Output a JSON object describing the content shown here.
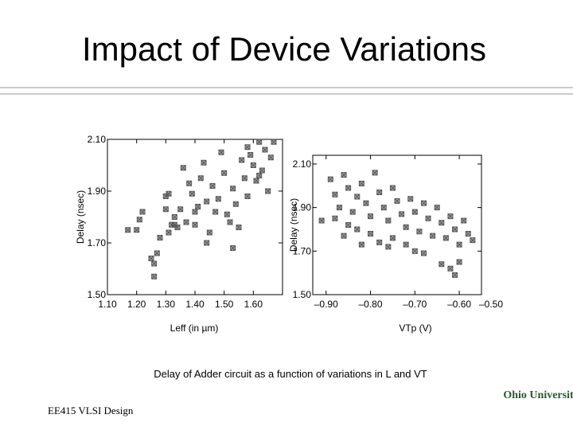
{
  "title": "Impact of Device Variations",
  "caption": "Delay of Adder circuit as a function of variations in  L and VT",
  "footer": "EE415 VLSI Design",
  "logo": "Ohio University",
  "chart_data": [
    {
      "type": "scatter",
      "xlabel": "Leff (in µm)",
      "ylabel": "Delay (nsec)",
      "color": "#555555",
      "xlim": [
        1.1,
        1.7
      ],
      "ylim": [
        1.5,
        2.1
      ],
      "xticks": [
        {
          "value": 1.1,
          "label": "1.10"
        },
        {
          "value": 1.2,
          "label": "1.20"
        },
        {
          "value": 1.3,
          "label": "1.30"
        },
        {
          "value": 1.4,
          "label": "1.40"
        },
        {
          "value": 1.5,
          "label": "1.50"
        },
        {
          "value": 1.6,
          "label": "1.60"
        }
      ],
      "yticks": [
        {
          "value": 1.5,
          "label": "1.50"
        },
        {
          "value": 1.7,
          "label": "1.70"
        },
        {
          "value": 1.9,
          "label": "1.90"
        },
        {
          "value": 2.1,
          "label": "2.10"
        }
      ],
      "x": [
        1.17,
        1.21,
        1.22,
        1.2,
        1.25,
        1.26,
        1.26,
        1.27,
        1.28,
        1.3,
        1.31,
        1.3,
        1.32,
        1.33,
        1.31,
        1.34,
        1.33,
        1.35,
        1.36,
        1.38,
        1.39,
        1.4,
        1.41,
        1.42,
        1.4,
        1.43,
        1.44,
        1.45,
        1.46,
        1.47,
        1.48,
        1.49,
        1.5,
        1.51,
        1.52,
        1.53,
        1.54,
        1.55,
        1.56,
        1.57,
        1.58,
        1.59,
        1.6,
        1.61,
        1.62,
        1.63,
        1.64,
        1.65,
        1.66,
        1.67,
        1.53,
        1.44,
        1.37,
        1.58,
        1.62
      ],
      "values": [
        1.75,
        1.79,
        1.82,
        1.75,
        1.64,
        1.62,
        1.57,
        1.66,
        1.72,
        1.88,
        1.89,
        1.83,
        1.77,
        1.77,
        1.74,
        1.76,
        1.8,
        1.83,
        1.99,
        1.93,
        1.89,
        1.82,
        1.84,
        1.95,
        1.77,
        2.01,
        1.86,
        1.74,
        1.92,
        1.82,
        1.87,
        2.05,
        1.97,
        1.81,
        1.78,
        1.91,
        1.85,
        1.76,
        2.02,
        1.95,
        1.88,
        2.04,
        2.0,
        1.94,
        2.09,
        1.98,
        2.06,
        1.9,
        2.03,
        2.09,
        1.68,
        1.7,
        1.78,
        2.07,
        1.96
      ]
    },
    {
      "type": "scatter",
      "xlabel": "VTp (V)",
      "ylabel": "Delay (nsec)",
      "color": "#555555",
      "xlim": [
        -0.93,
        -0.55
      ],
      "ylim": [
        1.5,
        2.14
      ],
      "xticks": [
        {
          "value": -0.9,
          "label": "–0.90"
        },
        {
          "value": -0.8,
          "label": "–0.80"
        },
        {
          "value": -0.7,
          "label": "–0.70"
        },
        {
          "value": -0.6,
          "label": "–0.60"
        },
        {
          "value": -0.5,
          "label": "–0.50"
        }
      ],
      "yticks": [
        {
          "value": 1.5,
          "label": "1.50"
        },
        {
          "value": 1.7,
          "label": "1.70"
        },
        {
          "value": 1.9,
          "label": "1.90"
        },
        {
          "value": 2.1,
          "label": "2.10"
        }
      ],
      "x": [
        -0.89,
        -0.86,
        -0.88,
        -0.85,
        -0.87,
        -0.84,
        -0.83,
        -0.82,
        -0.81,
        -0.8,
        -0.85,
        -0.83,
        -0.79,
        -0.78,
        -0.77,
        -0.76,
        -0.8,
        -0.78,
        -0.75,
        -0.74,
        -0.73,
        -0.72,
        -0.71,
        -0.7,
        -0.69,
        -0.68,
        -0.67,
        -0.72,
        -0.7,
        -0.66,
        -0.65,
        -0.64,
        -0.63,
        -0.62,
        -0.61,
        -0.6,
        -0.59,
        -0.58,
        -0.57,
        -0.6,
        -0.64,
        -0.68,
        -0.75,
        -0.88,
        -0.91,
        -0.86,
        -0.82,
        -0.76,
        -0.62,
        -0.61
      ],
      "values": [
        2.03,
        2.05,
        1.96,
        1.99,
        1.9,
        1.88,
        1.95,
        2.01,
        1.92,
        1.86,
        1.82,
        1.8,
        2.06,
        1.97,
        1.9,
        1.84,
        1.78,
        1.74,
        1.99,
        1.93,
        1.87,
        1.81,
        1.94,
        1.88,
        1.79,
        1.92,
        1.85,
        1.73,
        1.7,
        1.77,
        1.9,
        1.83,
        1.76,
        1.86,
        1.8,
        1.73,
        1.84,
        1.78,
        1.75,
        1.65,
        1.64,
        1.69,
        1.76,
        1.85,
        1.84,
        1.77,
        1.73,
        1.72,
        1.62,
        1.59
      ]
    }
  ]
}
